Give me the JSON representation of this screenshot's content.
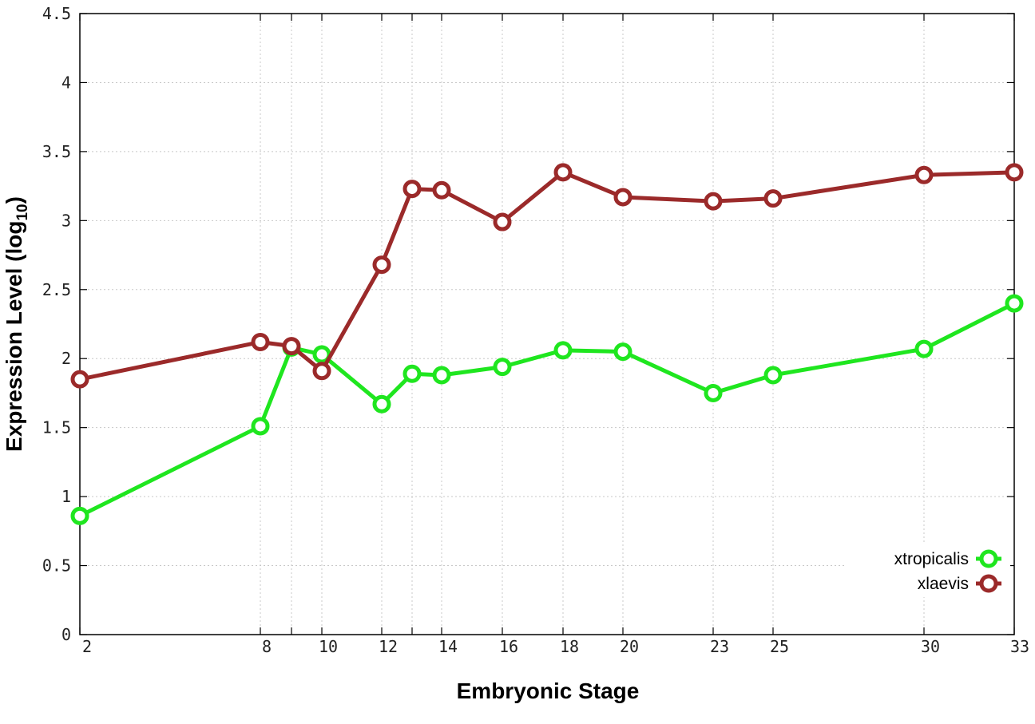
{
  "chart_data": {
    "type": "line",
    "xlabel": "Embryonic Stage",
    "ylabel": "Expression Level (log",
    "ylabel_subscript": "10",
    "ylabel_close": ")",
    "x_ticks": [
      "2",
      "8",
      "9",
      "10",
      "12",
      "13",
      "14",
      "16",
      "18",
      "20",
      "23",
      "25",
      "30",
      "33"
    ],
    "x_tick_labels": [
      "2",
      "8",
      "10",
      "12",
      "14",
      "16",
      "18",
      "20",
      "23",
      "25",
      "30",
      "33"
    ],
    "y_ticks": [
      "0",
      "0.5",
      "1",
      "1.5",
      "2",
      "2.5",
      "3",
      "3.5",
      "4",
      "4.5"
    ],
    "ylim": [
      0,
      4.5
    ],
    "grid": true,
    "legend_position": "bottom-right",
    "series": [
      {
        "name": "xtropicalis",
        "color": "#1fe61f",
        "x": [
          "2",
          "8",
          "9",
          "10",
          "12",
          "13",
          "14",
          "16",
          "18",
          "20",
          "23",
          "25",
          "30",
          "33"
        ],
        "values": [
          0.86,
          1.51,
          2.08,
          2.03,
          1.67,
          1.89,
          1.88,
          1.94,
          2.06,
          2.05,
          1.75,
          1.88,
          2.07,
          2.4
        ]
      },
      {
        "name": "xlaevis",
        "color": "#9b2a2a",
        "x": [
          "2",
          "8",
          "9",
          "10",
          "12",
          "13",
          "14",
          "16",
          "18",
          "20",
          "23",
          "25",
          "30",
          "33"
        ],
        "values": [
          1.85,
          2.12,
          2.09,
          1.91,
          2.68,
          3.23,
          3.22,
          2.99,
          3.35,
          3.17,
          3.14,
          3.16,
          3.33,
          3.35
        ]
      }
    ]
  }
}
